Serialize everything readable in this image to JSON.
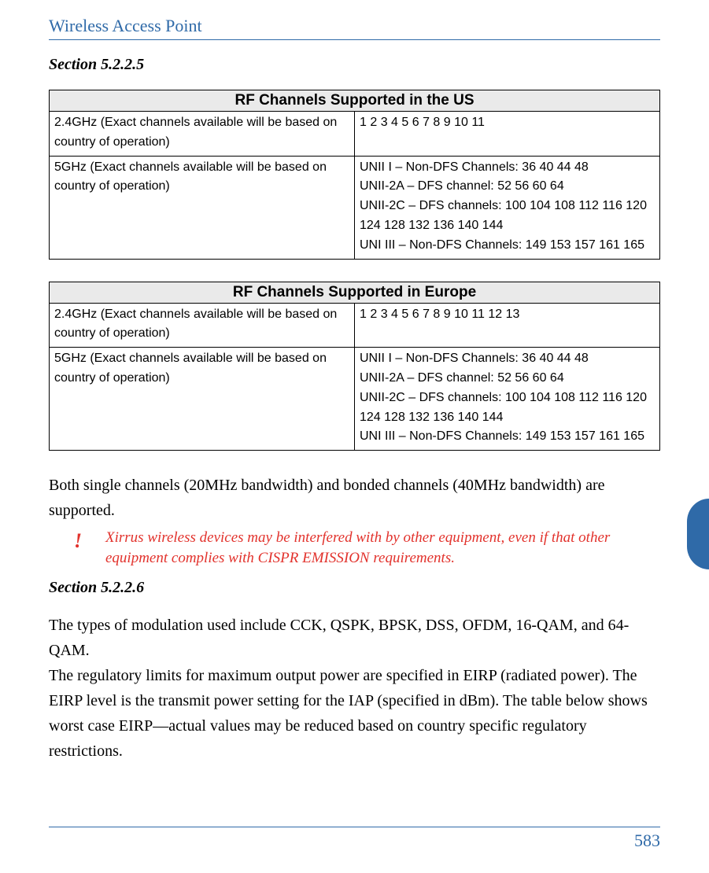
{
  "header": {
    "title": "Wireless Access Point"
  },
  "section5225": {
    "heading": "Section 5.2.2.5"
  },
  "table_us": {
    "title": "RF Channels Supported in the US",
    "row1_label": "2.4GHz (Exact channels available will be based on country of operation)",
    "row1_value": "1 2 3 4 5 6 7 8 9 10 11",
    "row2_label": "5GHz (Exact channels available will be based on country of operation)",
    "row2_l1": "UNII I – Non-DFS Channels: 36 40 44 48",
    "row2_l2": "UNII-2A – DFS channel: 52 56 60 64",
    "row2_l3": "UNII-2C – DFS channels: 100 104 108 112 116 120 124 128 132 136 140 144",
    "row2_l4": "UNI III – Non-DFS Channels: 149 153 157 161 165"
  },
  "table_eu": {
    "title": "RF Channels Supported in Europe",
    "row1_label": "2.4GHz (Exact channels available will be based on country of operation)",
    "row1_value": "1 2 3 4 5 6 7 8 9 10 11 12 13",
    "row2_label": "5GHz (Exact channels available will be based on country of operation)",
    "row2_l1": "UNII I – Non-DFS Channels: 36 40 44 48",
    "row2_l2": "UNII-2A – DFS channel: 52 56 60 64",
    "row2_l3": "UNII-2C – DFS channels: 100 104 108 112 116 120 124 128 132 136 140 144",
    "row2_l4": "UNI III – Non-DFS Channels: 149 153 157 161 165"
  },
  "para1": "Both single channels (20MHz bandwidth) and bonded channels (40MHz bandwidth) are supported.",
  "warning": {
    "bang": "!",
    "text": "Xirrus wireless devices may be interfered with by other equipment, even if that other equipment complies with CISPR EMISSION requirements."
  },
  "section5226": {
    "heading": "Section 5.2.2.6"
  },
  "para2a": "The types of modulation used include CCK, QSPK, BPSK, DSS, OFDM, 16-QAM, and 64-QAM.",
  "para2b": "The regulatory limits for maximum output power are specified in EIRP (radiated power). The EIRP level is the transmit power setting for the IAP (specified in dBm). The table below shows worst case EIRP—actual values may be reduced based on country specific regulatory restrictions.",
  "footer": {
    "page": "583"
  },
  "colors": {
    "accent": "#2f6aa8",
    "warning": "#e2322c",
    "table_header_bg": "#eaeaea"
  }
}
